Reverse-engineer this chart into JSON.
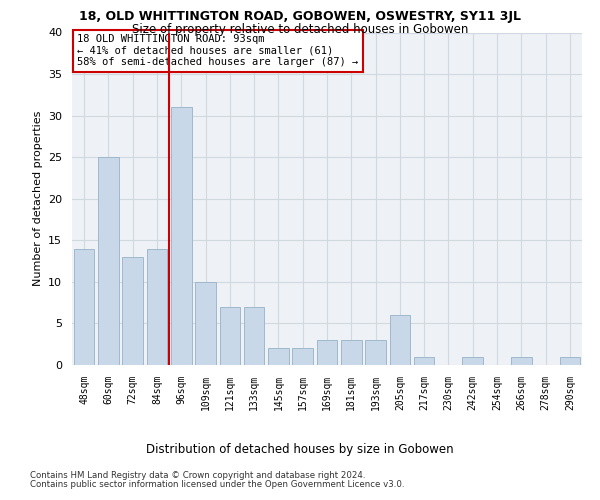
{
  "title": "18, OLD WHITTINGTON ROAD, GOBOWEN, OSWESTRY, SY11 3JL",
  "subtitle": "Size of property relative to detached houses in Gobowen",
  "xlabel_bottom": "Distribution of detached houses by size in Gobowen",
  "ylabel": "Number of detached properties",
  "categories": [
    "48sqm",
    "60sqm",
    "72sqm",
    "84sqm",
    "96sqm",
    "109sqm",
    "121sqm",
    "133sqm",
    "145sqm",
    "157sqm",
    "169sqm",
    "181sqm",
    "193sqm",
    "205sqm",
    "217sqm",
    "230sqm",
    "242sqm",
    "254sqm",
    "266sqm",
    "278sqm",
    "290sqm"
  ],
  "values": [
    14,
    25,
    13,
    14,
    31,
    10,
    7,
    7,
    2,
    2,
    3,
    3,
    3,
    6,
    1,
    0,
    1,
    0,
    1,
    0,
    1
  ],
  "bar_color": "#c8d8e8",
  "bar_edge_color": "#a0b8cc",
  "vline_x": 3.5,
  "vline_color": "#cc0000",
  "annotation_text": "18 OLD WHITTINGTON ROAD: 93sqm\n← 41% of detached houses are smaller (61)\n58% of semi-detached houses are larger (87) →",
  "annotation_box_color": "#ffffff",
  "annotation_box_edgecolor": "#cc0000",
  "ylim": [
    0,
    40
  ],
  "yticks": [
    0,
    5,
    10,
    15,
    20,
    25,
    30,
    35,
    40
  ],
  "grid_color": "#d0d8e0",
  "bg_color": "#eef2f7",
  "footer_line1": "Contains HM Land Registry data © Crown copyright and database right 2024.",
  "footer_line2": "Contains public sector information licensed under the Open Government Licence v3.0."
}
